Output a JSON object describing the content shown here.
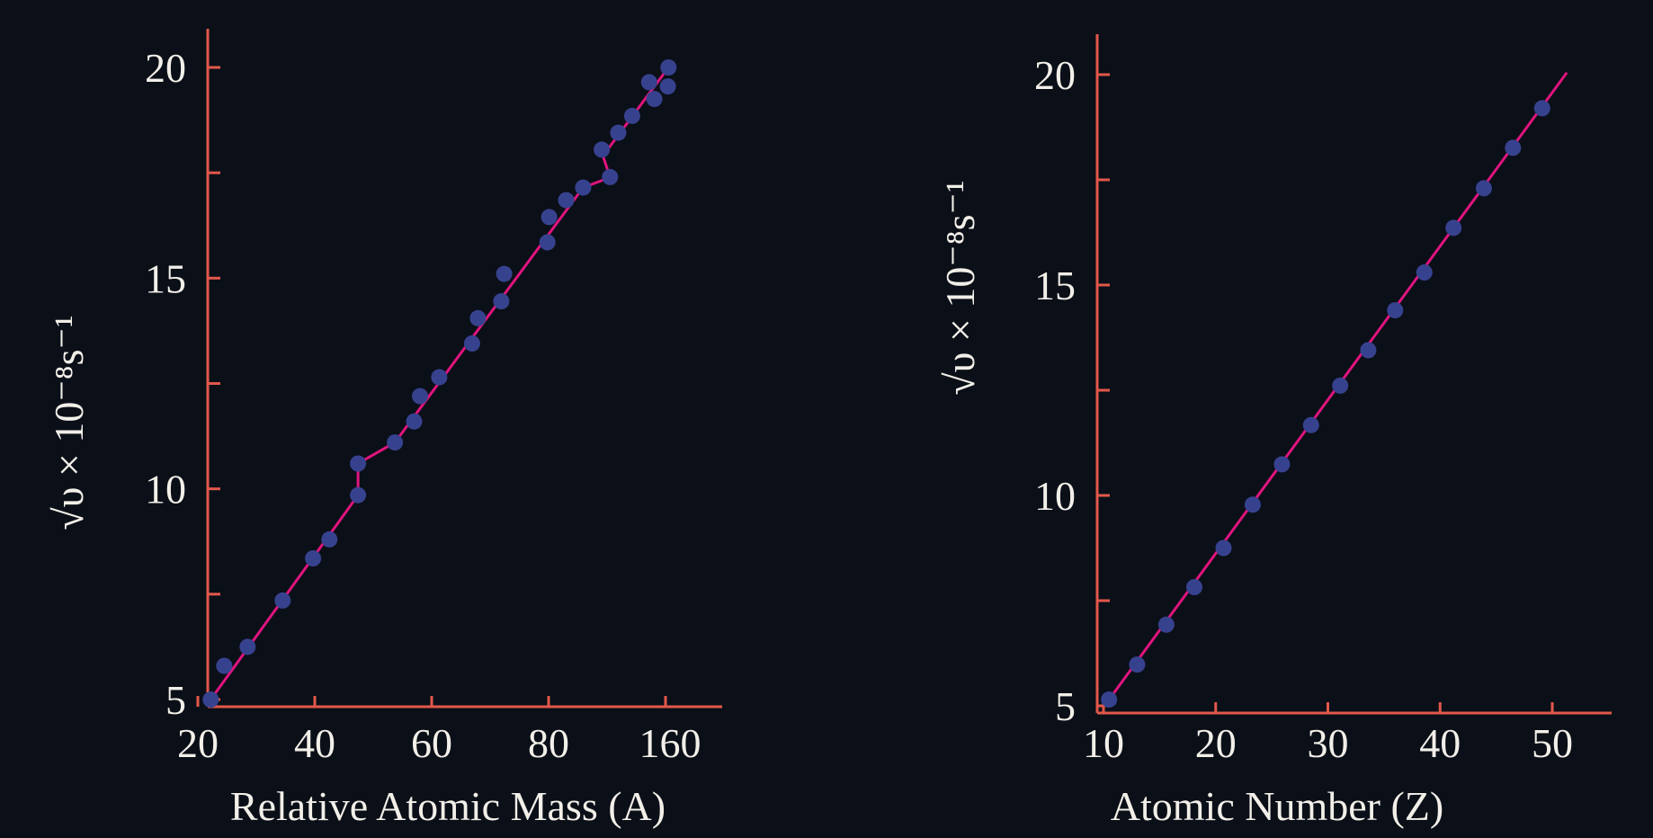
{
  "chart_data": [
    {
      "type": "line",
      "xlabel": "Relative Atomic Mass (A)",
      "ylabel": "√υ × 10⁻⁸s⁻¹",
      "x_ticks": [
        "20",
        "40",
        "60",
        "80",
        "160"
      ],
      "y_ticks": [
        "5",
        "10",
        "15",
        "20"
      ],
      "ylim": [
        5,
        20.5
      ],
      "grid": false,
      "colors": {
        "axis": "#e2584a",
        "line": "#e0147e",
        "marker": "#37428f",
        "text": "#f2efe8"
      },
      "points": [
        {
          "x": 22.2,
          "y": 5.0
        },
        {
          "x": 24.5,
          "y": 5.8
        },
        {
          "x": 28.5,
          "y": 6.25
        },
        {
          "x": 34.5,
          "y": 7.35
        },
        {
          "x": 39.7,
          "y": 8.35
        },
        {
          "x": 42.5,
          "y": 8.8
        },
        {
          "x": 47.4,
          "y": 10.6
        },
        {
          "x": 47.4,
          "y": 9.85
        },
        {
          "x": 53.7,
          "y": 11.1
        },
        {
          "x": 57.0,
          "y": 11.6
        },
        {
          "x": 58.0,
          "y": 12.2
        },
        {
          "x": 61.3,
          "y": 12.65
        },
        {
          "x": 66.9,
          "y": 13.45
        },
        {
          "x": 67.9,
          "y": 14.05
        },
        {
          "x": 71.9,
          "y": 14.45
        },
        {
          "x": 72.4,
          "y": 15.1
        },
        {
          "x": 79.8,
          "y": 15.85
        },
        {
          "x": 80.1,
          "y": 16.45
        },
        {
          "x": 83.0,
          "y": 16.85
        },
        {
          "x": 85.9,
          "y": 17.15
        },
        {
          "x": 89.1,
          "y": 18.05
        },
        {
          "x": 90.5,
          "y": 17.4
        },
        {
          "x": 91.9,
          "y": 18.45
        },
        {
          "x": 94.3,
          "y": 18.85
        },
        {
          "x": 97.2,
          "y": 19.65
        },
        {
          "x": 98.1,
          "y": 19.25
        },
        {
          "x": 100.5,
          "y": 20.0
        },
        {
          "x": 100.4,
          "y": 19.55
        }
      ],
      "line_path": [
        {
          "x": 22.2,
          "y": 5.0
        },
        {
          "x": 47.4,
          "y": 9.85
        },
        {
          "x": 47.4,
          "y": 10.6
        },
        {
          "x": 53.7,
          "y": 11.1
        },
        {
          "x": 85.9,
          "y": 17.15
        },
        {
          "x": 88.8,
          "y": 17.3
        },
        {
          "x": 90.5,
          "y": 17.4
        },
        {
          "x": 89.3,
          "y": 17.9
        },
        {
          "x": 100.5,
          "y": 20.0
        }
      ]
    },
    {
      "type": "line",
      "xlabel": "Atomic Number (Z)",
      "ylabel": "√υ × 10⁻⁸s⁻¹",
      "x_ticks": [
        "10",
        "20",
        "30",
        "40",
        "50"
      ],
      "y_ticks": [
        "5",
        "10",
        "15",
        "20"
      ],
      "xlim": [
        10,
        55
      ],
      "ylim": [
        4.85,
        21
      ],
      "grid": false,
      "colors": {
        "axis": "#e2584a",
        "line": "#e0147e",
        "marker": "#37428f",
        "text": "#f2efe8"
      },
      "points": [
        {
          "x": 10.5,
          "y": 5.15
        },
        {
          "x": 13,
          "y": 5.98
        },
        {
          "x": 15.6,
          "y": 6.93
        },
        {
          "x": 18.1,
          "y": 7.82
        },
        {
          "x": 20.7,
          "y": 8.75
        },
        {
          "x": 23.3,
          "y": 9.78
        },
        {
          "x": 25.9,
          "y": 10.74
        },
        {
          "x": 28.5,
          "y": 11.67
        },
        {
          "x": 31.1,
          "y": 12.61
        },
        {
          "x": 33.6,
          "y": 13.45
        },
        {
          "x": 36.0,
          "y": 14.4
        },
        {
          "x": 38.6,
          "y": 15.3
        },
        {
          "x": 41.2,
          "y": 16.36
        },
        {
          "x": 43.9,
          "y": 17.3
        },
        {
          "x": 46.5,
          "y": 18.26
        },
        {
          "x": 49.1,
          "y": 19.2
        }
      ],
      "line_path": [
        {
          "x": 10.5,
          "y": 5.15
        },
        {
          "x": 51.3,
          "y": 20.05
        }
      ]
    }
  ]
}
